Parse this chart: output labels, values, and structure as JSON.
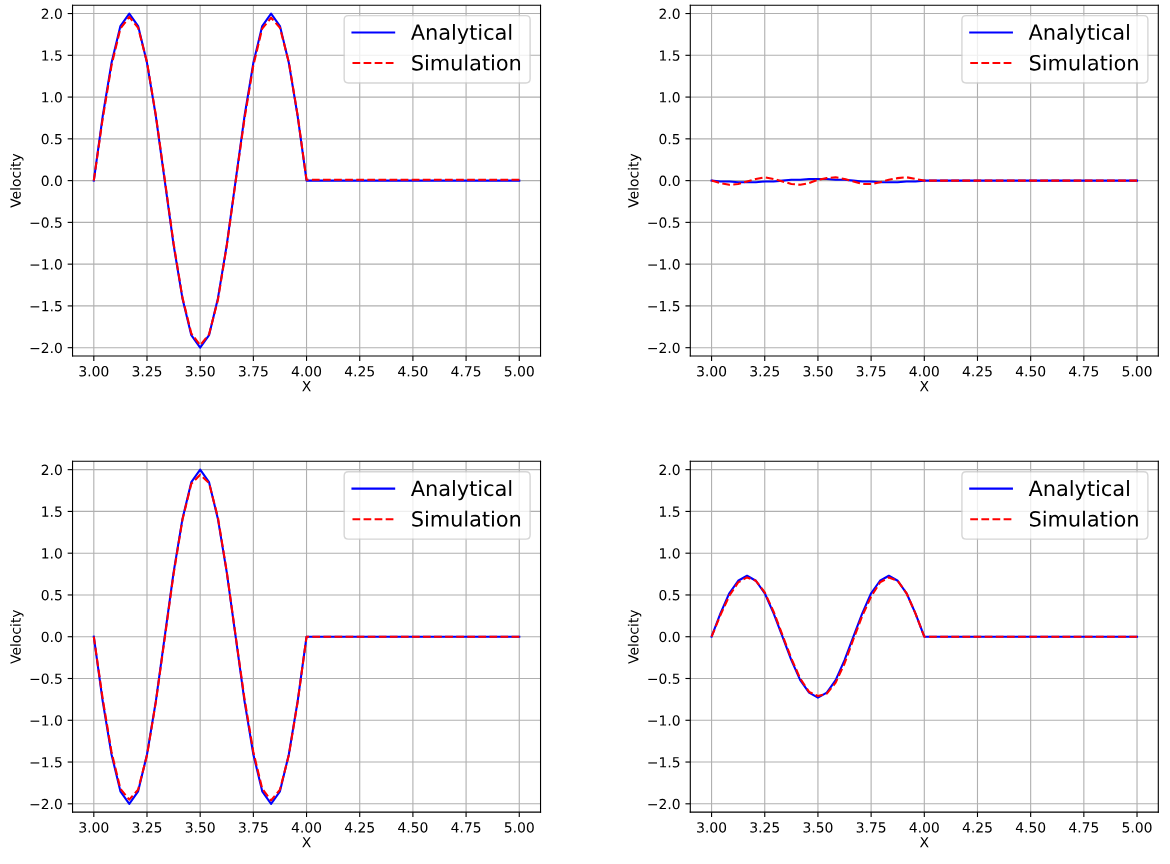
{
  "chart_data": [
    {
      "type": "line",
      "xlabel": "X",
      "ylabel": "Velocity",
      "grid": true,
      "legend": "top right",
      "xlim": [
        2.9,
        5.1
      ],
      "ylim": [
        -2.1,
        2.1
      ],
      "xticks": [
        {
          "value": 3,
          "label": "3.00"
        },
        {
          "value": 3.25,
          "label": "3.25"
        },
        {
          "value": 3.5,
          "label": "3.50"
        },
        {
          "value": 3.75,
          "label": "3.75"
        },
        {
          "value": 4,
          "label": "4.00"
        },
        {
          "value": 4.25,
          "label": "4.25"
        },
        {
          "value": 4.5,
          "label": "4.50"
        },
        {
          "value": 4.75,
          "label": "4.75"
        },
        {
          "value": 5,
          "label": "5.00"
        }
      ],
      "yticks": [
        {
          "value": -2,
          "label": "−2.0"
        },
        {
          "value": -1.5,
          "label": "−1.5"
        },
        {
          "value": -1,
          "label": "−1.0"
        },
        {
          "value": -0.5,
          "label": "−0.5"
        },
        {
          "value": 0,
          "label": "0.0"
        },
        {
          "value": 0.5,
          "label": "0.5"
        },
        {
          "value": 1,
          "label": "1.0"
        },
        {
          "value": 1.5,
          "label": "1.5"
        },
        {
          "value": 2,
          "label": "2.0"
        }
      ],
      "x": [
        3,
        3.0417,
        3.0833,
        3.125,
        3.1667,
        3.2083,
        3.25,
        3.2917,
        3.3333,
        3.375,
        3.4167,
        3.4583,
        3.5,
        3.5417,
        3.5833,
        3.625,
        3.6667,
        3.7083,
        3.75,
        3.7917,
        3.8333,
        3.875,
        3.9167,
        3.9583,
        4,
        5
      ],
      "series": [
        {
          "name": "Analytical",
          "color": "#0000ff",
          "line_style": "solid",
          "values": [
            0,
            0.77,
            1.41,
            1.85,
            2,
            1.85,
            1.41,
            0.77,
            0,
            -0.77,
            -1.41,
            -1.85,
            -2,
            -1.85,
            -1.41,
            -0.77,
            0,
            0.77,
            1.41,
            1.85,
            2,
            1.85,
            1.41,
            0.77,
            0,
            0
          ]
        },
        {
          "name": "Simulation",
          "color": "#ff0000",
          "line_style": "dashed",
          "values": [
            0,
            0.74,
            1.38,
            1.82,
            1.96,
            1.83,
            1.42,
            0.78,
            0.02,
            -0.75,
            -1.4,
            -1.83,
            -1.97,
            -1.84,
            -1.43,
            -0.78,
            -0.01,
            0.74,
            1.38,
            1.82,
            1.95,
            1.83,
            1.42,
            0.78,
            0.01,
            0.01
          ]
        }
      ]
    },
    {
      "type": "line",
      "xlabel": "X",
      "ylabel": "Velocity",
      "grid": true,
      "legend": "top right",
      "xlim": [
        2.9,
        5.1
      ],
      "ylim": [
        -2.1,
        2.1
      ],
      "xticks": [
        {
          "value": 3,
          "label": "3.00"
        },
        {
          "value": 3.25,
          "label": "3.25"
        },
        {
          "value": 3.5,
          "label": "3.50"
        },
        {
          "value": 3.75,
          "label": "3.75"
        },
        {
          "value": 4,
          "label": "4.00"
        },
        {
          "value": 4.25,
          "label": "4.25"
        },
        {
          "value": 4.5,
          "label": "4.50"
        },
        {
          "value": 4.75,
          "label": "4.75"
        },
        {
          "value": 5,
          "label": "5.00"
        }
      ],
      "yticks": [
        {
          "value": -2,
          "label": "−2.0"
        },
        {
          "value": -1.5,
          "label": "−1.5"
        },
        {
          "value": -1,
          "label": "−1.0"
        },
        {
          "value": -0.5,
          "label": "−0.5"
        },
        {
          "value": 0,
          "label": "0.0"
        },
        {
          "value": 0.5,
          "label": "0.5"
        },
        {
          "value": 1,
          "label": "1.0"
        },
        {
          "value": 1.5,
          "label": "1.5"
        },
        {
          "value": 2,
          "label": "2.0"
        }
      ],
      "x": [
        3,
        3.0417,
        3.0833,
        3.125,
        3.1667,
        3.2083,
        3.25,
        3.2917,
        3.3333,
        3.375,
        3.4167,
        3.4583,
        3.5,
        3.5417,
        3.5833,
        3.625,
        3.6667,
        3.7083,
        3.75,
        3.7917,
        3.8333,
        3.875,
        3.9167,
        3.9583,
        4,
        5
      ],
      "series": [
        {
          "name": "Analytical",
          "color": "#0000ff",
          "line_style": "solid",
          "values": [
            0,
            -0.01,
            -0.01,
            -0.02,
            -0.02,
            -0.02,
            -0.01,
            -0.01,
            0,
            0.01,
            0.01,
            0.02,
            0.02,
            0.02,
            0.01,
            0.01,
            0,
            -0.01,
            -0.01,
            -0.02,
            -0.02,
            -0.02,
            -0.01,
            -0.01,
            0,
            0
          ]
        },
        {
          "name": "Simulation",
          "color": "#ff0000",
          "line_style": "dashed",
          "values": [
            0,
            -0.03,
            -0.05,
            -0.04,
            -0.01,
            0.02,
            0.04,
            0.02,
            -0.01,
            -0.04,
            -0.05,
            -0.03,
            0.01,
            0.03,
            0.04,
            0.02,
            -0.01,
            -0.04,
            -0.04,
            -0.02,
            0.01,
            0.03,
            0.04,
            0.02,
            0,
            0
          ]
        }
      ]
    },
    {
      "type": "line",
      "xlabel": "X",
      "ylabel": "Velocity",
      "grid": true,
      "legend": "top right",
      "xlim": [
        2.9,
        5.1
      ],
      "ylim": [
        -2.1,
        2.1
      ],
      "xticks": [
        {
          "value": 3,
          "label": "3.00"
        },
        {
          "value": 3.25,
          "label": "3.25"
        },
        {
          "value": 3.5,
          "label": "3.50"
        },
        {
          "value": 3.75,
          "label": "3.75"
        },
        {
          "value": 4,
          "label": "4.00"
        },
        {
          "value": 4.25,
          "label": "4.25"
        },
        {
          "value": 4.5,
          "label": "4.50"
        },
        {
          "value": 4.75,
          "label": "4.75"
        },
        {
          "value": 5,
          "label": "5.00"
        }
      ],
      "yticks": [
        {
          "value": -2,
          "label": "−2.0"
        },
        {
          "value": -1.5,
          "label": "−1.5"
        },
        {
          "value": -1,
          "label": "−1.0"
        },
        {
          "value": -0.5,
          "label": "−0.5"
        },
        {
          "value": 0,
          "label": "0.0"
        },
        {
          "value": 0.5,
          "label": "0.5"
        },
        {
          "value": 1,
          "label": "1.0"
        },
        {
          "value": 1.5,
          "label": "1.5"
        },
        {
          "value": 2,
          "label": "2.0"
        }
      ],
      "x": [
        3,
        3.0417,
        3.0833,
        3.125,
        3.1667,
        3.2083,
        3.25,
        3.2917,
        3.3333,
        3.375,
        3.4167,
        3.4583,
        3.5,
        3.5417,
        3.5833,
        3.625,
        3.6667,
        3.7083,
        3.75,
        3.7917,
        3.8333,
        3.875,
        3.9167,
        3.9583,
        4,
        5
      ],
      "series": [
        {
          "name": "Analytical",
          "color": "#0000ff",
          "line_style": "solid",
          "values": [
            0,
            -0.77,
            -1.41,
            -1.85,
            -2,
            -1.85,
            -1.41,
            -0.77,
            0,
            0.77,
            1.41,
            1.85,
            2,
            1.85,
            1.41,
            0.77,
            0,
            -0.77,
            -1.41,
            -1.85,
            -2,
            -1.85,
            -1.41,
            -0.77,
            0,
            0
          ]
        },
        {
          "name": "Simulation",
          "color": "#ff0000",
          "line_style": "dashed",
          "values": [
            0,
            -0.74,
            -1.38,
            -1.82,
            -1.95,
            -1.83,
            -1.42,
            -0.78,
            -0.02,
            0.75,
            1.4,
            1.83,
            1.94,
            1.84,
            1.43,
            0.78,
            0.01,
            -0.74,
            -1.38,
            -1.82,
            -1.96,
            -1.83,
            -1.42,
            -0.78,
            0,
            0
          ]
        }
      ]
    },
    {
      "type": "line",
      "xlabel": "X",
      "ylabel": "Velocity",
      "grid": true,
      "legend": "top right",
      "xlim": [
        2.9,
        5.1
      ],
      "ylim": [
        -2.1,
        2.1
      ],
      "xticks": [
        {
          "value": 3,
          "label": "3.00"
        },
        {
          "value": 3.25,
          "label": "3.25"
        },
        {
          "value": 3.5,
          "label": "3.50"
        },
        {
          "value": 3.75,
          "label": "3.75"
        },
        {
          "value": 4,
          "label": "4.00"
        },
        {
          "value": 4.25,
          "label": "4.25"
        },
        {
          "value": 4.5,
          "label": "4.50"
        },
        {
          "value": 4.75,
          "label": "4.75"
        },
        {
          "value": 5,
          "label": "5.00"
        }
      ],
      "yticks": [
        {
          "value": -2,
          "label": "−2.0"
        },
        {
          "value": -1.5,
          "label": "−1.5"
        },
        {
          "value": -1,
          "label": "−1.0"
        },
        {
          "value": -0.5,
          "label": "−0.5"
        },
        {
          "value": 0,
          "label": "0.0"
        },
        {
          "value": 0.5,
          "label": "0.5"
        },
        {
          "value": 1,
          "label": "1.0"
        },
        {
          "value": 1.5,
          "label": "1.5"
        },
        {
          "value": 2,
          "label": "2.0"
        }
      ],
      "x": [
        3,
        3.0417,
        3.0833,
        3.125,
        3.1667,
        3.2083,
        3.25,
        3.2917,
        3.3333,
        3.375,
        3.4167,
        3.4583,
        3.5,
        3.5417,
        3.5833,
        3.625,
        3.6667,
        3.7083,
        3.75,
        3.7917,
        3.8333,
        3.875,
        3.9167,
        3.9583,
        4,
        5
      ],
      "series": [
        {
          "name": "Analytical",
          "color": "#0000ff",
          "line_style": "solid",
          "values": [
            0,
            0.28,
            0.52,
            0.67,
            0.73,
            0.67,
            0.52,
            0.28,
            0,
            -0.28,
            -0.52,
            -0.67,
            -0.73,
            -0.67,
            -0.52,
            -0.28,
            0,
            0.28,
            0.52,
            0.67,
            0.73,
            0.67,
            0.52,
            0.28,
            0,
            0
          ]
        },
        {
          "name": "Simulation",
          "color": "#ff0000",
          "line_style": "dashed",
          "values": [
            0,
            0.26,
            0.49,
            0.65,
            0.71,
            0.67,
            0.53,
            0.3,
            0.02,
            -0.26,
            -0.5,
            -0.66,
            -0.71,
            -0.68,
            -0.55,
            -0.32,
            -0.03,
            0.25,
            0.48,
            0.65,
            0.71,
            0.67,
            0.52,
            0.28,
            0,
            0
          ]
        }
      ]
    }
  ]
}
